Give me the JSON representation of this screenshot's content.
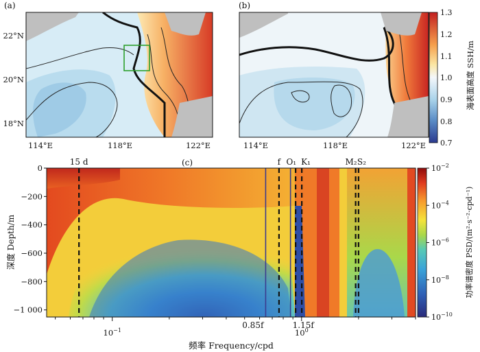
{
  "figure": {
    "panel_a": {
      "label": "(a)",
      "lat_ticks": [
        "22°N",
        "20°N",
        "18°N"
      ],
      "lon_ticks": [
        "114°E",
        "118°E",
        "122°E"
      ],
      "box_color": "#2ca02c"
    },
    "panel_b": {
      "label": "(b)",
      "lon_ticks": [
        "114°E",
        "118°E",
        "122°E"
      ]
    },
    "ssh_colorbar": {
      "label": "海表面高度 SSH/m",
      "ticks": [
        "1.3",
        "1.2",
        "1.1",
        "1.0",
        "0.9",
        "0.8",
        "0.7"
      ],
      "range": [
        0.7,
        1.3
      ]
    },
    "panel_c": {
      "label": "(c)",
      "xlabel": "频率 Frequency/cpd",
      "ylabel": "深度 Depth/m",
      "xticks": [
        {
          "text": "10",
          "exp": "−1",
          "x": 0.1
        },
        {
          "text": "10",
          "exp": "0",
          "x": 1.0
        }
      ],
      "yticks": [
        "0",
        "−200",
        "−400",
        "−600",
        "−800",
        "−1 000"
      ],
      "psd_colorbar": {
        "label": "功率谱密度 PSD/(m²·s⁻²·cpd⁻¹)",
        "ticks": [
          {
            "text": "10",
            "exp": "−2"
          },
          {
            "text": "10",
            "exp": "−4"
          },
          {
            "text": "10",
            "exp": "−6"
          },
          {
            "text": "10",
            "exp": "−8"
          },
          {
            "text": "10",
            "exp": "−10"
          }
        ]
      }
    }
  },
  "chart_data": [
    {
      "type": "heatmap",
      "panel": "(a)",
      "title": "",
      "x_axis": {
        "ticks": [
          "114°E",
          "118°E",
          "122°E"
        ],
        "range_deg": [
          112,
          123
        ]
      },
      "y_axis": {
        "ticks": [
          "22°N",
          "20°N",
          "18°N"
        ],
        "range_deg": [
          17,
          23
        ]
      },
      "variable": "SSH",
      "colorbar_range": [
        0.7,
        1.3
      ]
    },
    {
      "type": "heatmap",
      "panel": "(b)",
      "title": "",
      "x_axis": {
        "ticks": [
          "114°E",
          "118°E",
          "122°E"
        ],
        "range_deg": [
          112,
          123
        ]
      },
      "y_axis": {
        "range_deg": [
          17,
          23
        ]
      },
      "variable": "SSH",
      "colorbar_range": [
        0.7,
        1.3
      ]
    },
    {
      "type": "heatmap",
      "panel": "(c)",
      "xlabel": "频率 Frequency/cpd",
      "ylabel": "深度 Depth/m",
      "x_scale": "log",
      "xlim": [
        0.045,
        4.0
      ],
      "ylim": [
        -1050,
        0
      ],
      "colorbar_scale": "log",
      "colorbar_range": [
        1e-10,
        0.01
      ],
      "annotations": [
        {
          "label": "15 d",
          "x": 0.0667,
          "style": "dashed"
        },
        {
          "label": "f",
          "x": 0.76,
          "style": "dashed"
        },
        {
          "label": "0.85f",
          "x": 0.646,
          "style": "solid"
        },
        {
          "label": "1.15f",
          "x": 0.874,
          "style": "solid"
        },
        {
          "label": "O₁",
          "x": 0.93,
          "style": "dashed"
        },
        {
          "label": "K₁",
          "x": 1.0027,
          "style": "dashed"
        },
        {
          "label": "M₂",
          "x": 1.93,
          "style": "dashed"
        },
        {
          "label": "S₂",
          "x": 2.0,
          "style": "dashed"
        }
      ]
    }
  ]
}
